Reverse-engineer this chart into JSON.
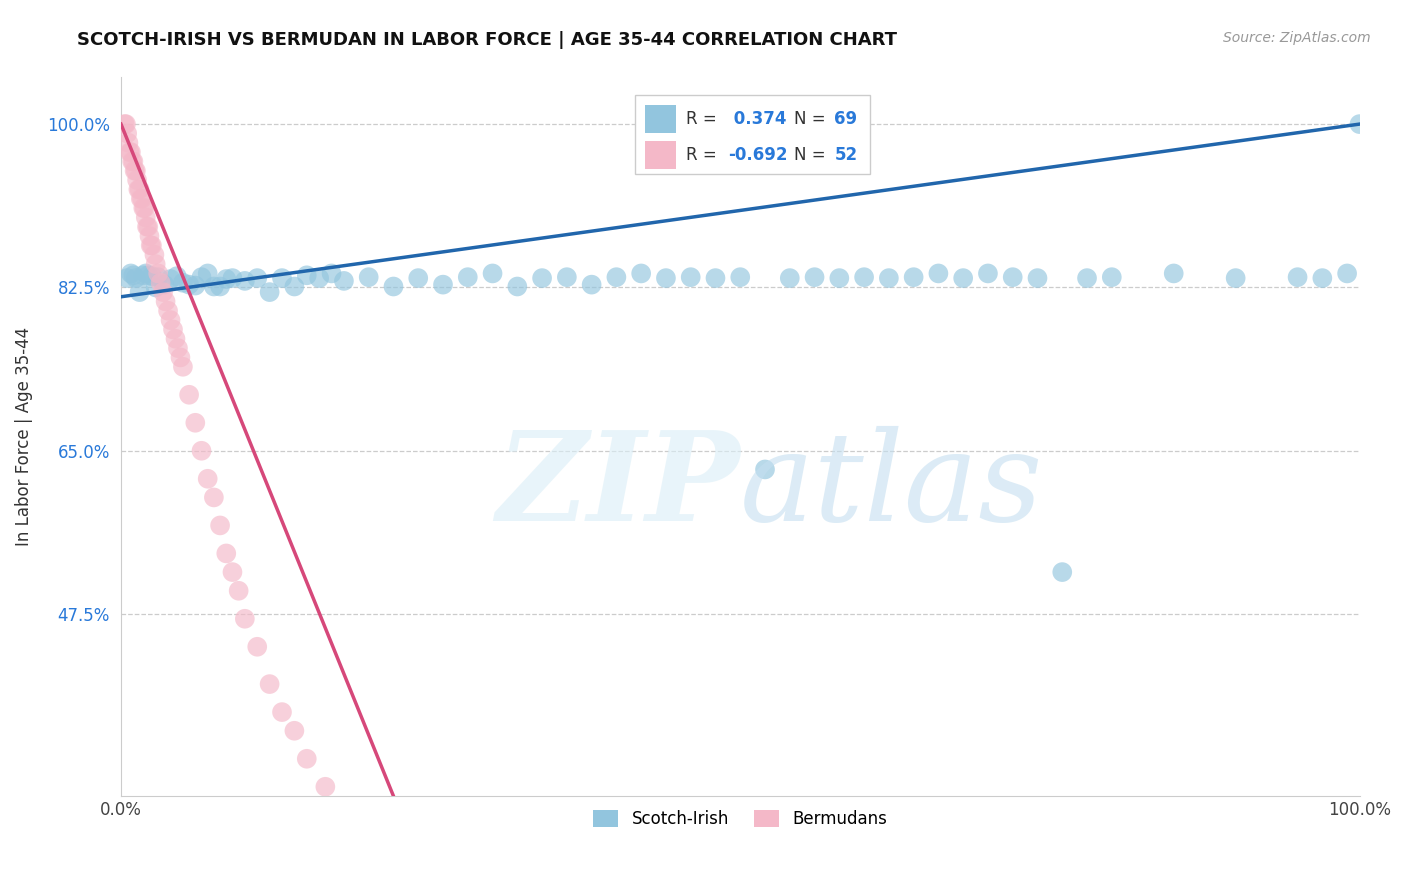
{
  "title": "SCOTCH-IRISH VS BERMUDAN IN LABOR FORCE | AGE 35-44 CORRELATION CHART",
  "source": "Source: ZipAtlas.com",
  "ylabel": "In Labor Force | Age 35-44",
  "r_scotch_irish": 0.374,
  "n_scotch_irish": 69,
  "r_bermudan": -0.692,
  "n_bermudan": 52,
  "scotch_irish_color": "#92c5de",
  "bermudan_color": "#f4b8c8",
  "scotch_irish_line_color": "#2166ac",
  "bermudan_line_color": "#d6487a",
  "scotch_irish_x": [
    0.005,
    0.008,
    0.01,
    0.012,
    0.015,
    0.018,
    0.02,
    0.022,
    0.025,
    0.028,
    0.03,
    0.035,
    0.04,
    0.045,
    0.05,
    0.055,
    0.06,
    0.065,
    0.07,
    0.075,
    0.08,
    0.085,
    0.09,
    0.1,
    0.11,
    0.12,
    0.13,
    0.14,
    0.15,
    0.16,
    0.17,
    0.18,
    0.2,
    0.22,
    0.24,
    0.26,
    0.28,
    0.3,
    0.32,
    0.34,
    0.36,
    0.38,
    0.4,
    0.42,
    0.44,
    0.46,
    0.48,
    0.5,
    0.52,
    0.54,
    0.56,
    0.58,
    0.6,
    0.62,
    0.64,
    0.66,
    0.68,
    0.7,
    0.72,
    0.74,
    0.76,
    0.78,
    0.8,
    0.85,
    0.9,
    0.95,
    0.97,
    0.99,
    1.0
  ],
  "scotch_irish_y": [
    0.835,
    0.84,
    0.838,
    0.835,
    0.82,
    0.838,
    0.84,
    0.838,
    0.837,
    0.825,
    0.836,
    0.828,
    0.834,
    0.837,
    0.83,
    0.828,
    0.827,
    0.836,
    0.84,
    0.826,
    0.826,
    0.834,
    0.835,
    0.832,
    0.835,
    0.82,
    0.835,
    0.826,
    0.838,
    0.835,
    0.84,
    0.832,
    0.836,
    0.826,
    0.835,
    0.828,
    0.836,
    0.84,
    0.826,
    0.835,
    0.836,
    0.828,
    0.836,
    0.84,
    0.835,
    0.836,
    0.835,
    0.836,
    0.63,
    0.835,
    0.836,
    0.835,
    0.836,
    0.835,
    0.836,
    0.84,
    0.835,
    0.84,
    0.836,
    0.835,
    0.52,
    0.835,
    0.836,
    0.84,
    0.835,
    0.836,
    0.835,
    0.84,
    1.0
  ],
  "bermudan_x": [
    0.003,
    0.004,
    0.005,
    0.006,
    0.007,
    0.008,
    0.009,
    0.01,
    0.011,
    0.012,
    0.013,
    0.014,
    0.015,
    0.016,
    0.017,
    0.018,
    0.019,
    0.02,
    0.021,
    0.022,
    0.023,
    0.024,
    0.025,
    0.027,
    0.028,
    0.03,
    0.032,
    0.034,
    0.036,
    0.038,
    0.04,
    0.042,
    0.044,
    0.046,
    0.048,
    0.05,
    0.055,
    0.06,
    0.065,
    0.07,
    0.075,
    0.08,
    0.085,
    0.09,
    0.095,
    0.1,
    0.11,
    0.12,
    0.13,
    0.14,
    0.15,
    0.165
  ],
  "bermudan_y": [
    1.0,
    1.0,
    0.99,
    0.98,
    0.97,
    0.97,
    0.96,
    0.96,
    0.95,
    0.95,
    0.94,
    0.93,
    0.93,
    0.92,
    0.92,
    0.91,
    0.91,
    0.9,
    0.89,
    0.89,
    0.88,
    0.87,
    0.87,
    0.86,
    0.85,
    0.84,
    0.83,
    0.82,
    0.81,
    0.8,
    0.79,
    0.78,
    0.77,
    0.76,
    0.75,
    0.74,
    0.71,
    0.68,
    0.65,
    0.62,
    0.6,
    0.57,
    0.54,
    0.52,
    0.5,
    0.47,
    0.44,
    0.4,
    0.37,
    0.35,
    0.32,
    0.29
  ],
  "bermudan_line_start_x": 0.0,
  "bermudan_line_start_y": 1.0,
  "bermudan_line_end_x": 0.22,
  "bermudan_line_end_y": 0.28,
  "scotch_irish_line_start_x": 0.0,
  "scotch_irish_line_start_y": 0.815,
  "scotch_irish_line_end_x": 1.0,
  "scotch_irish_line_end_y": 1.0,
  "xlim": [
    0.0,
    1.0
  ],
  "ylim": [
    0.28,
    1.05
  ],
  "ytick_vals": [
    0.475,
    0.65,
    0.825,
    1.0
  ],
  "ytick_labels": [
    "47.5%",
    "65.0%",
    "82.5%",
    "100.0%"
  ],
  "xtick_vals": [
    0.0,
    1.0
  ],
  "xtick_labels": [
    "0.0%",
    "100.0%"
  ]
}
